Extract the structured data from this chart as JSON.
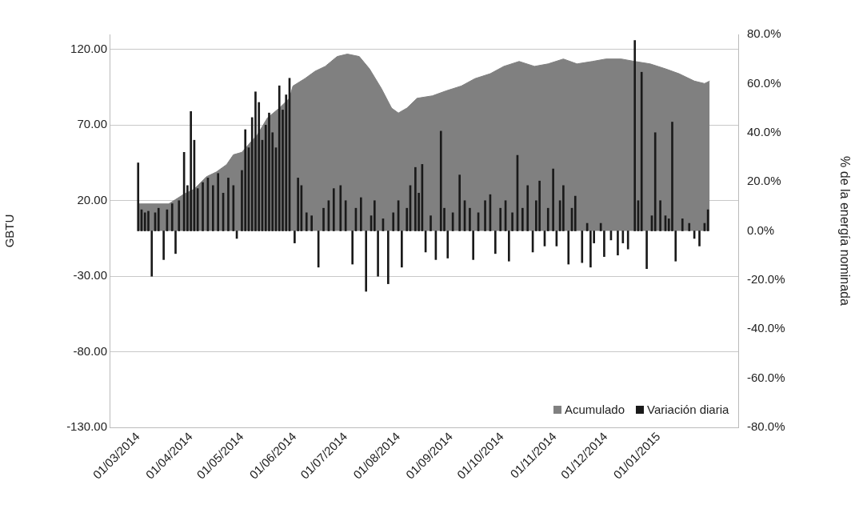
{
  "chart_data": {
    "type": "bar",
    "ylabel": "GBTU",
    "y2label": "% de la energía nominada",
    "xlim": [
      "2014-03-01",
      "2015-01-31"
    ],
    "xticks": [
      {
        "value": "2014-03-01",
        "label": "01/03/2014"
      },
      {
        "value": "2014-04-01",
        "label": "01/04/2014"
      },
      {
        "value": "2014-05-01",
        "label": "01/05/2014"
      },
      {
        "value": "2014-06-01",
        "label": "01/06/2014"
      },
      {
        "value": "2014-07-01",
        "label": "01/07/2014"
      },
      {
        "value": "2014-08-01",
        "label": "01/08/2014"
      },
      {
        "value": "2014-09-01",
        "label": "01/09/2014"
      },
      {
        "value": "2014-10-01",
        "label": "01/10/2014"
      },
      {
        "value": "2014-11-01",
        "label": "01/11/2014"
      },
      {
        "value": "2014-12-01",
        "label": "01/12/2014"
      },
      {
        "value": "2015-01-01",
        "label": "01/01/2015"
      }
    ],
    "ylim": [
      -130,
      130
    ],
    "yticks": [
      {
        "value": -130,
        "label": "-130.00"
      },
      {
        "value": -80,
        "label": "-80.00"
      },
      {
        "value": -30,
        "label": "-30.00"
      },
      {
        "value": 20,
        "label": "20.00"
      },
      {
        "value": 70,
        "label": "70.00"
      },
      {
        "value": 120,
        "label": "120.00"
      }
    ],
    "y2lim": [
      -80,
      80
    ],
    "y2ticks": [
      {
        "value": -80,
        "label": "-80.0%"
      },
      {
        "value": -60,
        "label": "-60.0%"
      },
      {
        "value": -40,
        "label": "-40.0%"
      },
      {
        "value": -20,
        "label": "-20.0%"
      },
      {
        "value": 0,
        "label": "0.0%"
      },
      {
        "value": 20,
        "label": "20.0%"
      },
      {
        "value": 40,
        "label": "40.0%"
      },
      {
        "value": 60,
        "label": "60.0%"
      },
      {
        "value": 80,
        "label": "80.0%"
      }
    ],
    "grid": "y",
    "legend": "bottom right",
    "series": [
      {
        "name": "Acumulado",
        "type": "area",
        "axis": "y2",
        "color": "#808080",
        "x": [
          "2014-03-01",
          "2014-03-19",
          "2014-03-28",
          "2014-04-03",
          "2014-04-10",
          "2014-04-16",
          "2014-04-22",
          "2014-04-26",
          "2014-05-01",
          "2014-05-06",
          "2014-05-10",
          "2014-05-16",
          "2014-05-23",
          "2014-05-29",
          "2014-05-31",
          "2014-06-07",
          "2014-06-13",
          "2014-06-19",
          "2014-06-26",
          "2014-07-02",
          "2014-07-09",
          "2014-07-15",
          "2014-07-22",
          "2014-07-28",
          "2014-08-01",
          "2014-08-06",
          "2014-08-12",
          "2014-08-21",
          "2014-08-29",
          "2014-09-07",
          "2014-09-15",
          "2014-09-24",
          "2014-10-02",
          "2014-10-11",
          "2014-10-20",
          "2014-10-28",
          "2014-11-06",
          "2014-11-14",
          "2014-11-23",
          "2014-12-01",
          "2014-12-10",
          "2014-12-18",
          "2014-12-27",
          "2015-01-05",
          "2015-01-13",
          "2015-01-22",
          "2015-01-28",
          "2015-01-31"
        ],
        "values": [
          11,
          11,
          15,
          17,
          22,
          24,
          27,
          31,
          32,
          36,
          39,
          46,
          50,
          54,
          59,
          62,
          65,
          67,
          71,
          72,
          71,
          66,
          58,
          50,
          48,
          50,
          54,
          55,
          57,
          59,
          62,
          64,
          67,
          69,
          67,
          68,
          70,
          68,
          69,
          70,
          70,
          69,
          68,
          66,
          64,
          61,
          60,
          61
        ]
      },
      {
        "name": "Variación diaria",
        "color": "#1a1a1a",
        "x": [
          "2014-03-01",
          "2014-03-03",
          "2014-03-05",
          "2014-03-07",
          "2014-03-09",
          "2014-03-11",
          "2014-03-13",
          "2014-03-16",
          "2014-03-18",
          "2014-03-21",
          "2014-03-23",
          "2014-03-25",
          "2014-03-28",
          "2014-03-30",
          "2014-04-01",
          "2014-04-03",
          "2014-04-05",
          "2014-04-08",
          "2014-04-11",
          "2014-04-14",
          "2014-04-17",
          "2014-04-20",
          "2014-04-23",
          "2014-04-26",
          "2014-04-28",
          "2014-05-01",
          "2014-05-03",
          "2014-05-05",
          "2014-05-07",
          "2014-05-09",
          "2014-05-11",
          "2014-05-13",
          "2014-05-15",
          "2014-05-17",
          "2014-05-19",
          "2014-05-21",
          "2014-05-23",
          "2014-05-25",
          "2014-05-27",
          "2014-05-29",
          "2014-06-01",
          "2014-06-03",
          "2014-06-05",
          "2014-06-08",
          "2014-06-11",
          "2014-06-15",
          "2014-06-18",
          "2014-06-21",
          "2014-06-24",
          "2014-06-28",
          "2014-07-01",
          "2014-07-05",
          "2014-07-07",
          "2014-07-10",
          "2014-07-13",
          "2014-07-16",
          "2014-07-18",
          "2014-07-20",
          "2014-07-23",
          "2014-07-26",
          "2014-07-29",
          "2014-08-01",
          "2014-08-03",
          "2014-08-06",
          "2014-08-08",
          "2014-08-11",
          "2014-08-13",
          "2014-08-15",
          "2014-08-17",
          "2014-08-20",
          "2014-08-23",
          "2014-08-26",
          "2014-08-28",
          "2014-08-30",
          "2014-09-02",
          "2014-09-06",
          "2014-09-09",
          "2014-09-12",
          "2014-09-14",
          "2014-09-17",
          "2014-09-21",
          "2014-09-24",
          "2014-09-27",
          "2014-09-30",
          "2014-10-03",
          "2014-10-05",
          "2014-10-07",
          "2014-10-10",
          "2014-10-13",
          "2014-10-16",
          "2014-10-19",
          "2014-10-21",
          "2014-10-23",
          "2014-10-26",
          "2014-10-28",
          "2014-10-31",
          "2014-11-02",
          "2014-11-04",
          "2014-11-06",
          "2014-11-09",
          "2014-11-11",
          "2014-11-13",
          "2014-11-17",
          "2014-11-20",
          "2014-11-22",
          "2014-11-24",
          "2014-11-28",
          "2014-11-30",
          "2014-12-04",
          "2014-12-08",
          "2014-12-11",
          "2014-12-14",
          "2014-12-18",
          "2014-12-20",
          "2014-12-22",
          "2014-12-25",
          "2014-12-28",
          "2014-12-30",
          "2015-01-02",
          "2015-01-05",
          "2015-01-07",
          "2015-01-09",
          "2015-01-11",
          "2015-01-15",
          "2015-01-19",
          "2015-01-22",
          "2015-01-25",
          "2015-01-28",
          "2015-01-30"
        ],
        "values": [
          45,
          14,
          12,
          13,
          -30,
          12,
          15,
          -19,
          14,
          18,
          -15,
          20,
          52,
          30,
          79,
          60,
          28,
          32,
          35,
          30,
          38,
          25,
          35,
          30,
          -5,
          40,
          67,
          55,
          75,
          92,
          85,
          60,
          70,
          78,
          65,
          55,
          96,
          80,
          90,
          101,
          -8,
          35,
          30,
          12,
          10,
          -24,
          15,
          20,
          28,
          30,
          20,
          -22,
          15,
          22,
          -40,
          10,
          20,
          -30,
          8,
          -35,
          12,
          20,
          -24,
          15,
          30,
          42,
          25,
          44,
          -14,
          10,
          -19,
          66,
          15,
          -18,
          12,
          37,
          20,
          15,
          -19,
          12,
          20,
          24,
          -15,
          15,
          20,
          -20,
          12,
          50,
          15,
          30,
          -14,
          20,
          33,
          -10,
          15,
          41,
          -10,
          20,
          30,
          -22,
          15,
          23,
          -21,
          5,
          -24,
          -8,
          5,
          -17,
          -6,
          -16,
          -8,
          -12,
          126,
          20,
          105,
          -25,
          10,
          65,
          20,
          10,
          8,
          72,
          -20,
          8,
          5,
          -5,
          -10,
          5,
          14
        ]
      }
    ]
  }
}
